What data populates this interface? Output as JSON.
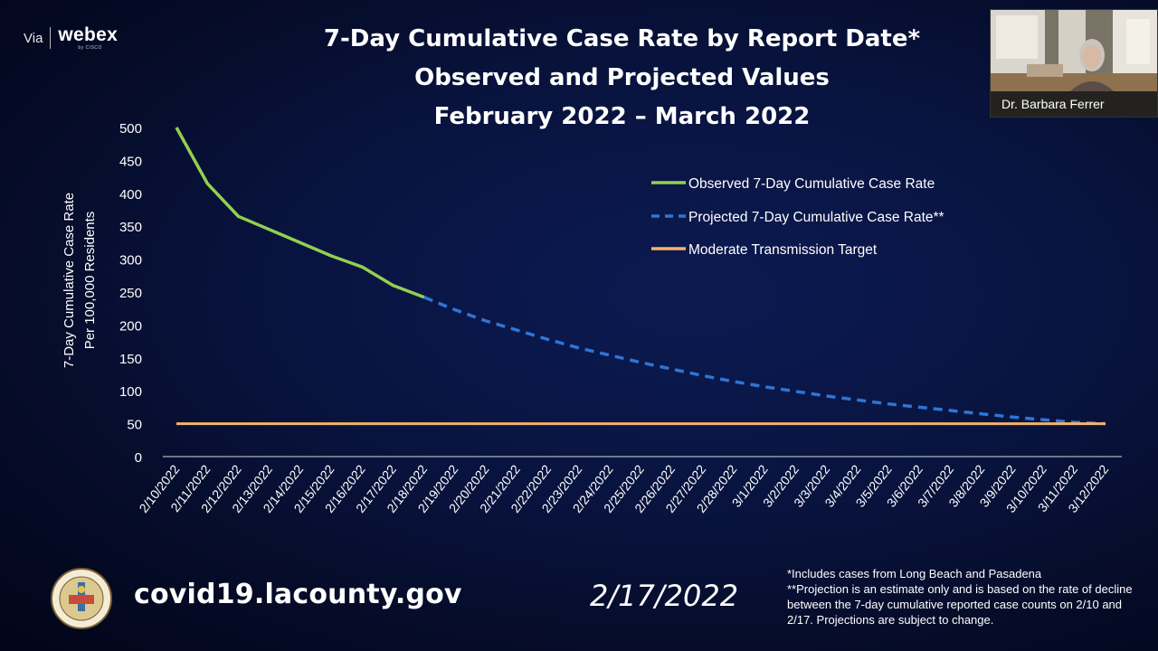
{
  "branding": {
    "via": "Via",
    "product": "webex",
    "sub": "by CISCO"
  },
  "title": {
    "line1": "7-Day Cumulative Case Rate by Report Date*",
    "line2": "Observed and Projected Values",
    "line3": "February 2022 – March 2022"
  },
  "video": {
    "participant_name": "Dr. Barbara Ferrer"
  },
  "footer": {
    "url": "covid19.lacounty.gov",
    "date": "2/17/2022",
    "footnote1": "*Includes cases from Long Beach and Pasadena",
    "footnote2": "**Projection is an estimate only and is based on the rate of decline between the 7-day cumulative reported case counts on 2/10 and 2/17. Projections are subject to change."
  },
  "colors": {
    "observed": "#92d050",
    "projected": "#2e75d6",
    "target": "#f4b36b",
    "axis": "#d9d9d9"
  },
  "chart_data": {
    "type": "line",
    "ylabel_line1": "7-Day Cumulative Case Rate",
    "ylabel_line2": "Per 100,000 Residents",
    "ylim": [
      0,
      500
    ],
    "yticks": [
      0,
      50,
      100,
      150,
      200,
      250,
      300,
      350,
      400,
      450,
      500
    ],
    "legend_position": "top-right",
    "grid": false,
    "categories": [
      "2/10/2022",
      "2/11/2022",
      "2/12/2022",
      "2/13/2022",
      "2/14/2022",
      "2/15/2022",
      "2/16/2022",
      "2/17/2022",
      "2/18/2022",
      "2/19/2022",
      "2/20/2022",
      "2/21/2022",
      "2/22/2022",
      "2/23/2022",
      "2/24/2022",
      "2/25/2022",
      "2/26/2022",
      "2/27/2022",
      "2/28/2022",
      "3/1/2022",
      "3/2/2022",
      "3/3/2022",
      "3/4/2022",
      "3/5/2022",
      "3/6/2022",
      "3/7/2022",
      "3/8/2022",
      "3/9/2022",
      "3/10/2022",
      "3/11/2022",
      "3/12/2022"
    ],
    "series": [
      {
        "name": "Observed 7-Day Cumulative Case Rate",
        "style": "solid",
        "values": [
          500,
          415,
          365,
          345,
          325,
          305,
          288,
          260,
          242,
          null,
          null,
          null,
          null,
          null,
          null,
          null,
          null,
          null,
          null,
          null,
          null,
          null,
          null,
          null,
          null,
          null,
          null,
          null,
          null,
          null,
          null
        ]
      },
      {
        "name": "Projected 7-Day Cumulative Case Rate**",
        "style": "dashed",
        "values": [
          null,
          null,
          null,
          null,
          null,
          null,
          null,
          null,
          242,
          223,
          206,
          192,
          178,
          165,
          154,
          143,
          133,
          123,
          114,
          106,
          99,
          92,
          86,
          80,
          75,
          70,
          65,
          60,
          56,
          52,
          50
        ]
      },
      {
        "name": "Moderate Transmission Target",
        "style": "solid",
        "values": [
          50,
          50,
          50,
          50,
          50,
          50,
          50,
          50,
          50,
          50,
          50,
          50,
          50,
          50,
          50,
          50,
          50,
          50,
          50,
          50,
          50,
          50,
          50,
          50,
          50,
          50,
          50,
          50,
          50,
          50,
          50
        ]
      }
    ]
  }
}
